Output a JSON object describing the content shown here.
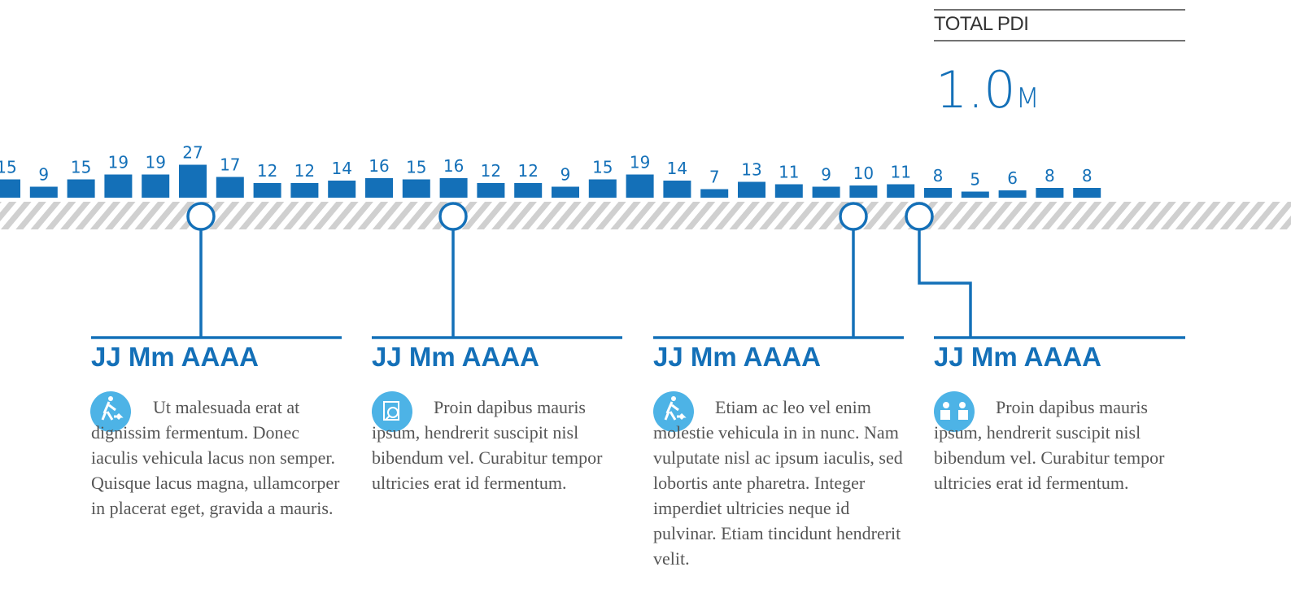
{
  "chart_data": {
    "type": "bar",
    "color": "#1470b8",
    "values": [
      15,
      9,
      15,
      19,
      19,
      27,
      17,
      12,
      12,
      14,
      16,
      15,
      16,
      12,
      12,
      9,
      15,
      19,
      14,
      7,
      13,
      11,
      9,
      10,
      11,
      8,
      5,
      6,
      8,
      8
    ]
  },
  "total": {
    "label": "TOTAL PDI",
    "value": "1.0",
    "unit": "M"
  },
  "events": [
    {
      "date": "JJ Mm AAAA",
      "text": "Ut malesuada erat at dignissim fermentum. Donec iaculis vehicula lacus non semper. Quisque lacus magna, ullamcorper in placerat eget, gravida a mauris."
    },
    {
      "date": "JJ Mm AAAA",
      "text": "Proin dapibus mauris ipsum, hendrerit suscipit nisl bibendum vel. Curabitur tempor ultricies erat id fermentum."
    },
    {
      "date": "JJ Mm AAAA",
      "text": "Etiam ac leo vel enim molestie vehicula in in nunc. Nam vulputate nisl ac ipsum iaculis, sed lobortis ante pharetra. Integer imperdiet ultricies neque id pulvinar. Etiam tincidunt hendrerit velit."
    },
    {
      "date": "JJ Mm AAAA",
      "text": "Proin dapibus mauris ipsum, hendrerit suscipit nisl bibendum vel. Curabitur tempor ultricies erat id fermentum."
    }
  ]
}
